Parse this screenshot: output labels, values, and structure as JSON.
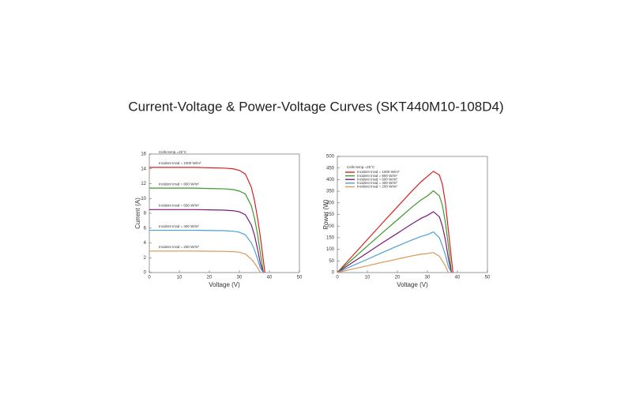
{
  "title": "Current-Voltage & Power-Voltage Curves (SKT440M10-108D4)",
  "chart_data": [
    {
      "type": "line",
      "xlabel": "Voltage  (V)",
      "ylabel": "Current  (A)",
      "annotation": "Cells temp.=25°C",
      "legend": "inline",
      "grid": false,
      "x": [
        0,
        5,
        10,
        15,
        20,
        25,
        28,
        30,
        32,
        34,
        35,
        36,
        37,
        38,
        38.5,
        39
      ],
      "xlim": [
        0,
        50
      ],
      "xticks": [
        0,
        10,
        20,
        30,
        40,
        50
      ],
      "ylim": [
        0,
        16
      ],
      "yticks": [
        0,
        2,
        4,
        6,
        8,
        10,
        12,
        14,
        16
      ],
      "series": [
        {
          "name": "Incident Irrad = 1000 W/m²",
          "color": "#d62020",
          "values": [
            14.2,
            14.2,
            14.2,
            14.2,
            14.15,
            14.1,
            14.0,
            13.8,
            13.3,
            11.5,
            9.8,
            7.5,
            4.8,
            1.6,
            0,
            null
          ]
        },
        {
          "name": "Incident Irrad = 800 W/m²",
          "color": "#3a9a2a",
          "values": [
            11.4,
            11.4,
            11.4,
            11.4,
            11.35,
            11.3,
            11.2,
            11.0,
            10.6,
            9.0,
            7.4,
            5.3,
            2.6,
            0,
            null,
            null
          ]
        },
        {
          "name": "Incident Irrad = 600 W/m²",
          "color": "#7a1a7a",
          "values": [
            8.5,
            8.5,
            8.5,
            8.5,
            8.47,
            8.43,
            8.35,
            8.2,
            7.8,
            6.4,
            5.1,
            3.3,
            1.2,
            0,
            null,
            null
          ]
        },
        {
          "name": "Incident Irrad = 400 W/m²",
          "color": "#4aa0d8",
          "values": [
            5.7,
            5.7,
            5.7,
            5.7,
            5.68,
            5.65,
            5.58,
            5.45,
            5.1,
            4.0,
            3.1,
            1.9,
            0.6,
            0,
            null,
            null
          ]
        },
        {
          "name": "Incident Irrad = 200 W/m²",
          "color": "#d9965a",
          "values": [
            2.9,
            2.9,
            2.9,
            2.9,
            2.88,
            2.86,
            2.82,
            2.74,
            2.5,
            1.8,
            1.3,
            0.7,
            0,
            null,
            null,
            null
          ]
        }
      ]
    },
    {
      "type": "line",
      "xlabel": "Voltage  (V)",
      "ylabel": "Power  (W)",
      "annotation": "Cells temp.=25°C",
      "legend": "upper left",
      "grid": false,
      "x": [
        0,
        5,
        10,
        15,
        20,
        25,
        28,
        30,
        32,
        34,
        35,
        36,
        37,
        38,
        38.5,
        39
      ],
      "xlim": [
        0,
        50
      ],
      "xticks": [
        0,
        10,
        20,
        30,
        40,
        50
      ],
      "ylim": [
        0,
        500
      ],
      "yticks": [
        0,
        50,
        100,
        150,
        200,
        250,
        300,
        350,
        400,
        450,
        500
      ],
      "series": [
        {
          "name": "Incident Irrad = 1000 W/m²",
          "color": "#d62020",
          "values": [
            0,
            71,
            142,
            213,
            283,
            353,
            392,
            414,
            436,
            420,
            380,
            300,
            180,
            60,
            0,
            null
          ]
        },
        {
          "name": "Incident Irrad = 800 W/m²",
          "color": "#3a9a2a",
          "values": [
            0,
            57,
            114,
            171,
            227,
            283,
            314,
            330,
            352,
            330,
            290,
            215,
            115,
            0,
            null,
            null
          ]
        },
        {
          "name": "Incident Irrad = 600 W/m²",
          "color": "#7a1a7a",
          "values": [
            0,
            43,
            85,
            128,
            169,
            211,
            234,
            246,
            262,
            240,
            200,
            140,
            60,
            0,
            null,
            null
          ]
        },
        {
          "name": "Incident Irrad = 400 W/m²",
          "color": "#4aa0d8",
          "values": [
            0,
            29,
            57,
            86,
            114,
            141,
            156,
            163,
            175,
            150,
            115,
            75,
            25,
            0,
            null,
            null
          ]
        },
        {
          "name": "Incident Irrad = 200 W/m²",
          "color": "#d9965a",
          "values": [
            0,
            15,
            29,
            44,
            58,
            72,
            79,
            82,
            86,
            70,
            50,
            28,
            0,
            null,
            null,
            null
          ]
        }
      ]
    }
  ]
}
